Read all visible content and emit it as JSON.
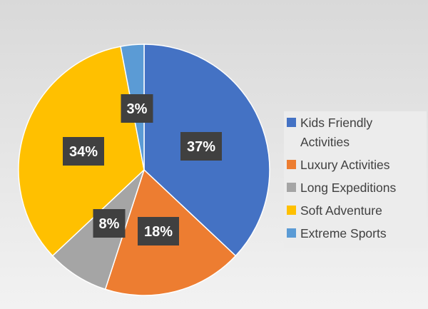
{
  "chart_data": {
    "type": "pie",
    "title": "",
    "start_angle_deg": 0,
    "direction": "clockwise",
    "legend_position": "right",
    "slices": [
      {
        "name": "Kids Friendly Activities",
        "value": 37,
        "label": "37%",
        "color": "#4472c4"
      },
      {
        "name": "Luxury Activities",
        "value": 18,
        "label": "18%",
        "color": "#ed7d31"
      },
      {
        "name": "Long Expeditions",
        "value": 8,
        "label": "8%",
        "color": "#a5a5a5"
      },
      {
        "name": "Soft Adventure",
        "value": 34,
        "label": "34%",
        "color": "#ffc000"
      },
      {
        "name": "Extreme Sports",
        "value": 3,
        "label": "3%",
        "color": "#5b9bd5"
      }
    ],
    "data_label_style": {
      "background": "#404040",
      "text_color": "#ffffff"
    }
  }
}
